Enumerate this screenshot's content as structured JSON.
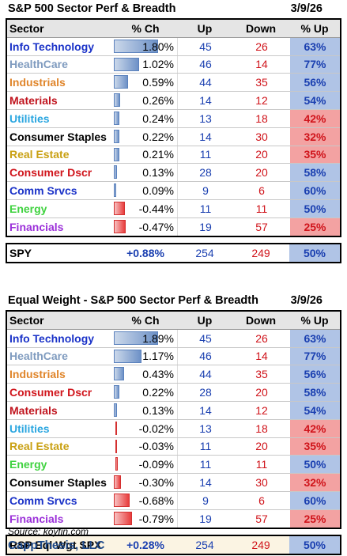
{
  "table1": {
    "title": "S&P 500 Sector Perf & Breadth",
    "date": "3/9/26",
    "headers": [
      "Sector",
      "% Ch",
      "Up",
      "Down",
      "% Up"
    ],
    "rows": [
      {
        "sector": "Info Technology",
        "color": "#1a32c8",
        "pct": "1.80%",
        "val": 1.8,
        "up": "45",
        "down": "26",
        "upct": "63%",
        "neg": false
      },
      {
        "sector": "HealthCare",
        "color": "#7f9bbf",
        "pct": "1.02%",
        "val": 1.02,
        "up": "46",
        "down": "14",
        "upct": "77%",
        "neg": false
      },
      {
        "sector": "Industrials",
        "color": "#e0852a",
        "pct": "0.59%",
        "val": 0.59,
        "up": "44",
        "down": "35",
        "upct": "56%",
        "neg": false
      },
      {
        "sector": "Materials",
        "color": "#c0141e",
        "pct": "0.26%",
        "val": 0.26,
        "up": "14",
        "down": "12",
        "upct": "54%",
        "neg": false
      },
      {
        "sector": "Utilities",
        "color": "#2aa6e0",
        "pct": "0.24%",
        "val": 0.24,
        "up": "13",
        "down": "18",
        "upct": "42%",
        "neg": true
      },
      {
        "sector": "Consumer Staples",
        "color": "#000000",
        "pct": "0.22%",
        "val": 0.22,
        "up": "14",
        "down": "30",
        "upct": "32%",
        "neg": true
      },
      {
        "sector": "Real Estate",
        "color": "#c9a012",
        "pct": "0.21%",
        "val": 0.21,
        "up": "11",
        "down": "20",
        "upct": "35%",
        "neg": true
      },
      {
        "sector": "Consumer Dscr",
        "color": "#d0141b",
        "pct": "0.13%",
        "val": 0.13,
        "up": "28",
        "down": "20",
        "upct": "58%",
        "neg": false
      },
      {
        "sector": "Comm Srvcs",
        "color": "#1a32c8",
        "pct": "0.09%",
        "val": 0.09,
        "up": "9",
        "down": "6",
        "upct": "60%",
        "neg": false
      },
      {
        "sector": "Energy",
        "color": "#3fd23f",
        "pct": "-0.44%",
        "val": -0.44,
        "up": "11",
        "down": "11",
        "upct": "50%",
        "neg": false
      },
      {
        "sector": "Financials",
        "color": "#9b30d9",
        "pct": "-0.47%",
        "val": -0.47,
        "up": "19",
        "down": "57",
        "upct": "25%",
        "neg": true
      }
    ],
    "total": {
      "label": "SPY",
      "pct": "+0.88%",
      "up": "254",
      "down": "249",
      "upct": "50%"
    }
  },
  "table2": {
    "title": "Equal Weight - S&P 500 Sector Perf & Breadth",
    "date": "3/9/26",
    "headers": [
      "Sector",
      "% Ch",
      "Up",
      "Down",
      "% Up"
    ],
    "rows": [
      {
        "sector": "Info Technology",
        "color": "#1a32c8",
        "pct": "1.89%",
        "val": 1.89,
        "up": "45",
        "down": "26",
        "upct": "63%",
        "neg": false
      },
      {
        "sector": "HealthCare",
        "color": "#7f9bbf",
        "pct": "1.17%",
        "val": 1.17,
        "up": "46",
        "down": "14",
        "upct": "77%",
        "neg": false
      },
      {
        "sector": "Industrials",
        "color": "#e0852a",
        "pct": "0.43%",
        "val": 0.43,
        "up": "44",
        "down": "35",
        "upct": "56%",
        "neg": false
      },
      {
        "sector": "Consumer Dscr",
        "color": "#d0141b",
        "pct": "0.22%",
        "val": 0.22,
        "up": "28",
        "down": "20",
        "upct": "58%",
        "neg": false
      },
      {
        "sector": "Materials",
        "color": "#c0141e",
        "pct": "0.13%",
        "val": 0.13,
        "up": "14",
        "down": "12",
        "upct": "54%",
        "neg": false
      },
      {
        "sector": "Utilities",
        "color": "#2aa6e0",
        "pct": "-0.02%",
        "val": -0.02,
        "up": "13",
        "down": "18",
        "upct": "42%",
        "neg": true
      },
      {
        "sector": "Real Estate",
        "color": "#c9a012",
        "pct": "-0.03%",
        "val": -0.03,
        "up": "11",
        "down": "20",
        "upct": "35%",
        "neg": true
      },
      {
        "sector": "Energy",
        "color": "#3fd23f",
        "pct": "-0.09%",
        "val": -0.09,
        "up": "11",
        "down": "11",
        "upct": "50%",
        "neg": false
      },
      {
        "sector": "Consumer Staples",
        "color": "#000000",
        "pct": "-0.30%",
        "val": -0.3,
        "up": "14",
        "down": "30",
        "upct": "32%",
        "neg": true
      },
      {
        "sector": "Comm Srvcs",
        "color": "#1a32c8",
        "pct": "-0.68%",
        "val": -0.68,
        "up": "9",
        "down": "6",
        "upct": "60%",
        "neg": false
      },
      {
        "sector": "Financials",
        "color": "#9b30d9",
        "pct": "-0.79%",
        "val": -0.79,
        "up": "19",
        "down": "57",
        "upct": "25%",
        "neg": true
      }
    ],
    "total": {
      "label": "RSP Eql Wgt SPX",
      "pct": "+0.28%",
      "up": "254",
      "down": "249",
      "upct": "50%"
    }
  },
  "footer": {
    "source": "Source: koyfin.com",
    "brand": "CappThesis, LLC"
  }
}
